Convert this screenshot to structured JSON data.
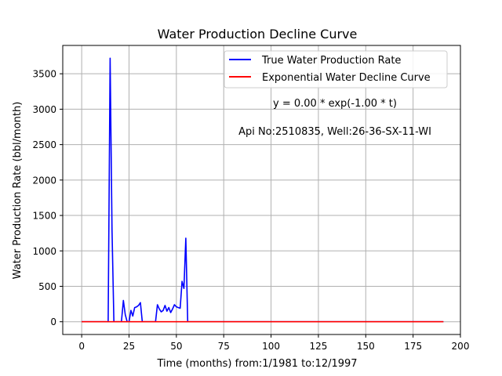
{
  "chart_data": {
    "type": "line",
    "title": "Water Production Decline Curve",
    "xlabel": "Time (months) from:1/1981 to:12/1997",
    "ylabel": "Water Production Rate (bbl/month)",
    "xlim": [
      -10,
      200
    ],
    "ylim": [
      -180,
      3900
    ],
    "xticks": [
      0,
      25,
      50,
      75,
      100,
      125,
      150,
      175,
      200
    ],
    "yticks": [
      0,
      500,
      1000,
      1500,
      2000,
      2500,
      3000,
      3500
    ],
    "grid": true,
    "legend_position": "top-right",
    "series": [
      {
        "name": "True Water Production Rate",
        "color": "#0000ff",
        "x": [
          0,
          1,
          2,
          3,
          4,
          5,
          6,
          7,
          8,
          9,
          10,
          11,
          12,
          13,
          14,
          15,
          16,
          17,
          18,
          19,
          20,
          21,
          22,
          23,
          24,
          25,
          26,
          27,
          28,
          29,
          30,
          31,
          32,
          33,
          34,
          35,
          36,
          37,
          38,
          39,
          40,
          41,
          42,
          43,
          44,
          45,
          46,
          47,
          48,
          49,
          50,
          51,
          52,
          53,
          54,
          55,
          56,
          57,
          58,
          60,
          80,
          100,
          120,
          140,
          160,
          180,
          191
        ],
        "y": [
          0,
          0,
          0,
          0,
          0,
          0,
          0,
          0,
          0,
          0,
          0,
          0,
          0,
          0,
          0,
          3720,
          1300,
          0,
          0,
          0,
          0,
          0,
          300,
          100,
          0,
          0,
          160,
          80,
          200,
          210,
          230,
          270,
          0,
          0,
          0,
          0,
          0,
          0,
          0,
          0,
          240,
          180,
          140,
          160,
          230,
          150,
          200,
          130,
          180,
          240,
          210,
          200,
          190,
          570,
          470,
          1180,
          0,
          0,
          0,
          0,
          0,
          0,
          0,
          0,
          0,
          0,
          0
        ]
      },
      {
        "name": "Exponential Water Decline Curve",
        "color": "#ff0000",
        "x": [
          0,
          191
        ],
        "y": [
          0,
          0
        ]
      }
    ],
    "annotations": [
      "y = 0.00 * exp(-1.00 * t)",
      "Api No:2510835, Well:26-36-SX-11-WI"
    ]
  }
}
